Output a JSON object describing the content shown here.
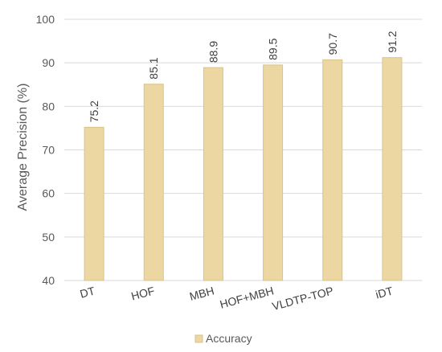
{
  "chart_data": {
    "type": "bar",
    "title": "",
    "xlabel": "",
    "ylabel": "Average Precision (%)",
    "categories": [
      "DT",
      "HOF",
      "MBH",
      "HOF+MBH",
      "VLDTP-TOP",
      "iDT"
    ],
    "series": [
      {
        "name": "Accuracy",
        "values": [
          75.2,
          85.1,
          88.9,
          89.5,
          90.7,
          91.2
        ],
        "color": "#ecd7a2",
        "edge_color": "#d8c38b"
      }
    ],
    "ylim": [
      40,
      100
    ],
    "yticks": [
      40,
      50,
      60,
      70,
      80,
      90,
      100
    ],
    "grid": true,
    "legend_position": "bottom",
    "data_labels": [
      "75.2",
      "85.1",
      "88.9",
      "89.5",
      "90.7",
      "91.2"
    ]
  }
}
